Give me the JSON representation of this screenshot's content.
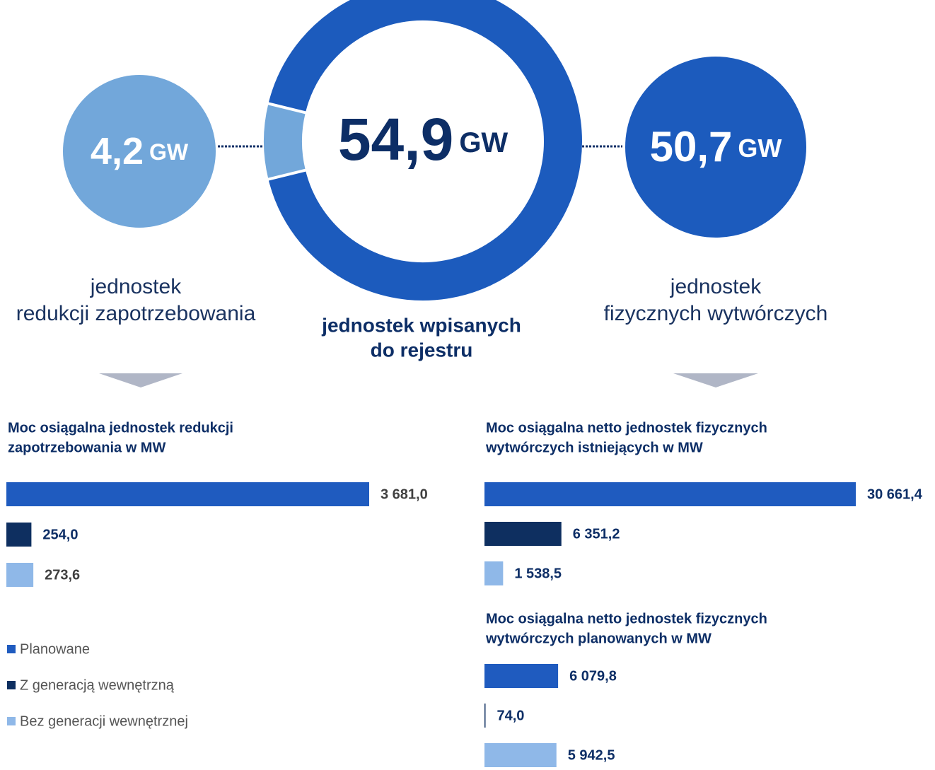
{
  "chart_data": [
    {
      "type": "donut",
      "title": [
        "jednostek wpisanych",
        "do rejestru"
      ],
      "total": 54.9,
      "total_label": "54,9",
      "unit": "GW",
      "categories": [
        [
          "jednostek",
          "redukcji zapotrzebowania"
        ],
        [
          "jednostek",
          "fizycznych wytwórczych"
        ]
      ],
      "values": [
        4.2,
        50.7
      ],
      "value_labels": [
        "4,2",
        "50,7"
      ],
      "colors": [
        "#72a7da",
        "#1c5bbd"
      ]
    },
    {
      "type": "hbar",
      "title": [
        "Moc osiągalna jednostek redukcji",
        "zapotrzebowania w MW"
      ],
      "series": [
        {
          "name": "Planowane",
          "color": "#1f5bbf",
          "values": [
            3681.0
          ],
          "value_labels": [
            "3 681,0"
          ]
        },
        {
          "name": "Z generacją wewnętrzną",
          "color": "#0e2f60",
          "values": [
            254.0
          ],
          "value_labels": [
            "254,0"
          ]
        },
        {
          "name": "Bez generacji wewnętrznej",
          "color": "#8fb8e8",
          "values": [
            273.6
          ],
          "value_labels": [
            "273,6"
          ]
        }
      ]
    },
    {
      "type": "hbar",
      "title": [
        "Moc osiągalna netto jednostek fizycznych",
        "wytwórczych istniejących w MW"
      ],
      "values": [
        30661.4,
        6351.2,
        1538.5
      ],
      "value_labels": [
        "30 661,4",
        "6 351,2",
        "1 538,5"
      ],
      "colors": [
        "#1f5bbf",
        "#0e2f60",
        "#8fb8e8"
      ]
    },
    {
      "type": "hbar",
      "title": [
        "Moc osiągalna netto jednostek fizycznych",
        "wytwórczych planowanych w MW"
      ],
      "values": [
        6079.8,
        74.0,
        5942.5
      ],
      "value_labels": [
        "6 079,8",
        "74,0",
        "5 942,5"
      ],
      "colors": [
        "#1f5bbf",
        "#0e2f60",
        "#8fb8e8"
      ]
    }
  ]
}
